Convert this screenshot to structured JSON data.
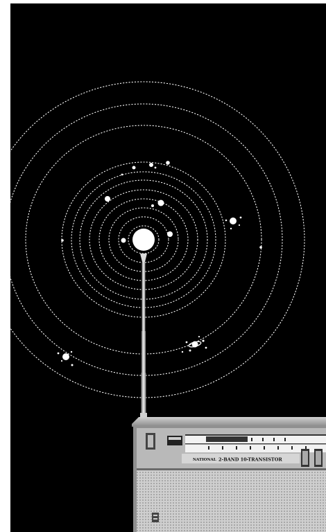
{
  "poster": {
    "background_color": "#000000",
    "border_color": "#ffffff",
    "dot_color": "#ffffff",
    "sun_color": "#ffffff",
    "radio_metal_color": "#9a9a9a",
    "radio_speaker_color": "#d6d6d6"
  },
  "radio": {
    "brand_label": "NATIONAL",
    "model_label": "2-BAND 10-TRANSISTOR",
    "icon": "transistor-radio-icon"
  },
  "solar_system": {
    "sun_icon": "sun-icon",
    "planet_icon": "planet-icon",
    "ringed_planet_icon": "ringed-planet-icon"
  }
}
